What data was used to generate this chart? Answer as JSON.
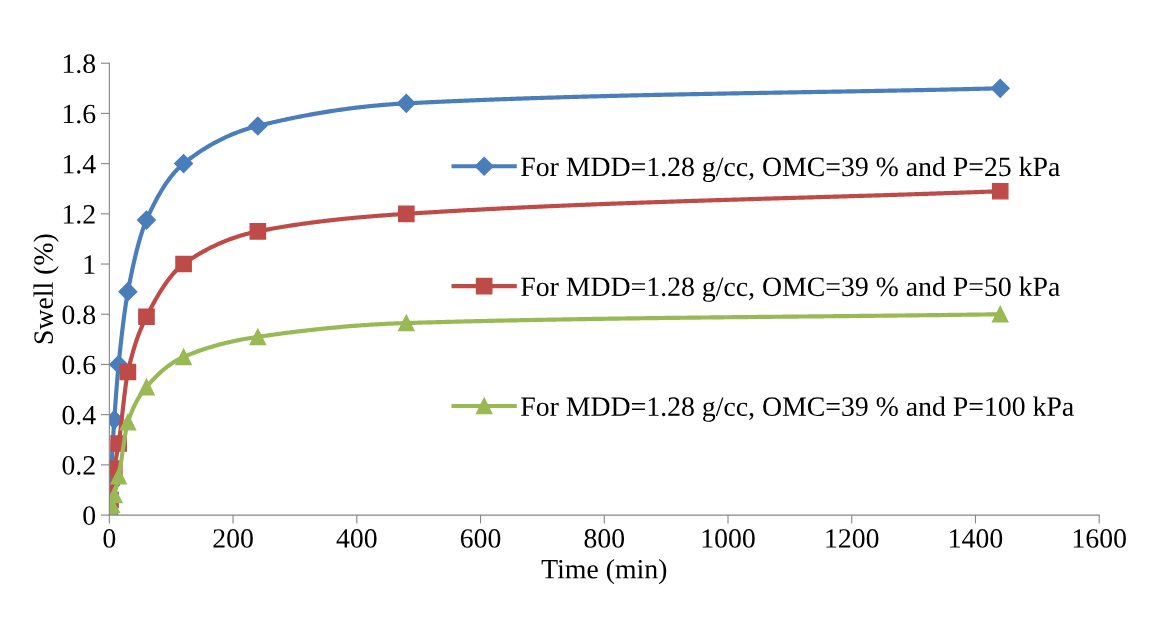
{
  "chart_data": {
    "type": "line",
    "xlabel": "Time (min)",
    "ylabel": "Swell (%)",
    "x": [
      0,
      2,
      4,
      8,
      15,
      30,
      60,
      120,
      240,
      480,
      1440
    ],
    "series": [
      {
        "name": "For MDD=1.28 g/cc, OMC=39 % and P=25 kPa",
        "color": "#4a7ebb",
        "marker": "diamond",
        "values": [
          0,
          0.12,
          null,
          0.38,
          0.6,
          0.89,
          1.175,
          1.4,
          1.55,
          1.64,
          1.7
        ]
      },
      {
        "name": "For MDD=1.28 g/cc, OMC=39 % and P=50 kPa",
        "color": "#be4b48",
        "marker": "square",
        "values": [
          0.02,
          0.06,
          null,
          0.185,
          0.285,
          0.57,
          0.79,
          1.0,
          1.13,
          1.2,
          1.29
        ]
      },
      {
        "name": "For MDD=1.28 g/cc, OMC=39 % and P=100 kPa",
        "color": "#98b954",
        "marker": "triangle",
        "values": [
          0.01,
          0.02,
          0.04,
          0.08,
          0.155,
          0.37,
          0.51,
          0.63,
          0.71,
          0.765,
          0.8
        ]
      }
    ],
    "xlim": [
      0,
      1600
    ],
    "xticks": [
      0,
      200,
      400,
      600,
      800,
      1000,
      1200,
      1400,
      1600
    ],
    "ylim": [
      0,
      1.8
    ],
    "yticks": [
      0,
      0.2,
      0.4,
      0.6,
      0.8,
      1,
      1.2,
      1.4,
      1.6,
      1.8
    ],
    "grid": false,
    "legend": "right",
    "line_style": "solid"
  }
}
